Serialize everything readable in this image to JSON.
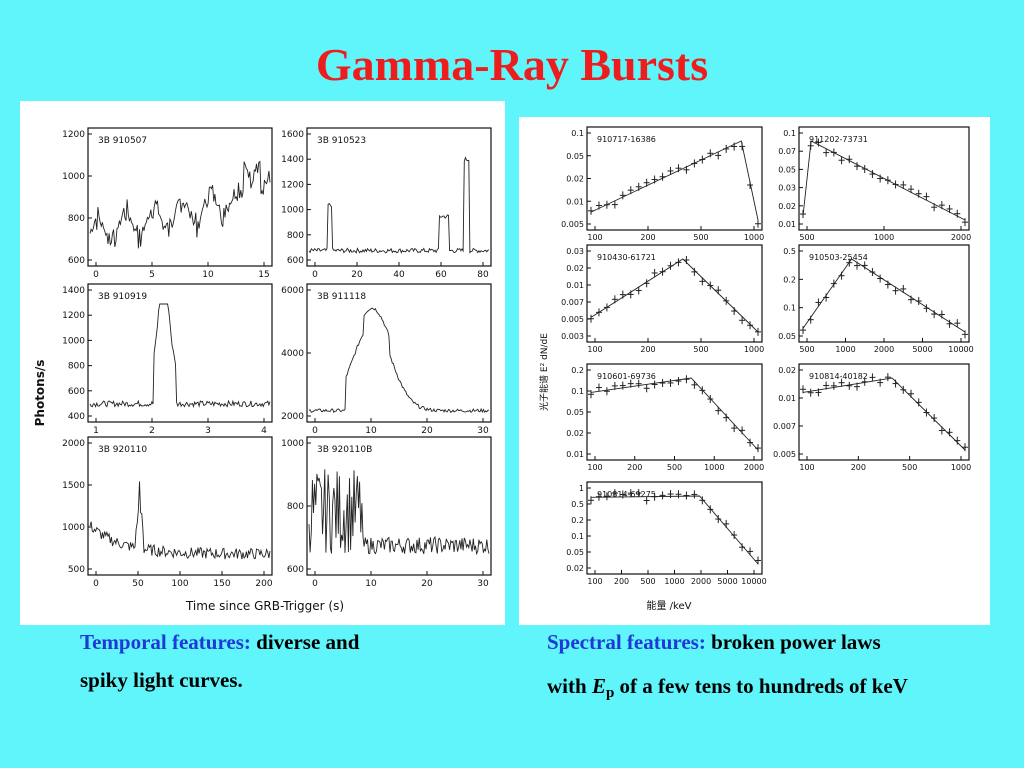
{
  "slide": {
    "title": "Gamma-Ray Bursts",
    "accent_color": "#1f39d6",
    "title_color": "#ee1d1d",
    "background": "#5ff5fb"
  },
  "left_figure": {
    "y_axis_label": "Photons/s",
    "x_axis_label": "Time since GRB-Trigger (s)",
    "panels": [
      {
        "name": "3B 910507",
        "yticks": [
          "1200",
          "1000",
          "800",
          "600"
        ],
        "xticks": [
          "0",
          "5",
          "10",
          "15"
        ]
      },
      {
        "name": "3B 910523",
        "yticks": [
          "1600",
          "1400",
          "1200",
          "1000",
          "800",
          "600"
        ],
        "xticks": [
          "0",
          "20",
          "40",
          "60",
          "80"
        ]
      },
      {
        "name": "3B 910919",
        "yticks": [
          "1400",
          "1200",
          "1000",
          "800",
          "600",
          "400"
        ],
        "xticks": [
          "1",
          "2",
          "3",
          "4"
        ]
      },
      {
        "name": "3B 911118",
        "yticks": [
          "6000",
          "4000",
          "2000"
        ],
        "xticks": [
          "0",
          "10",
          "20",
          "30"
        ]
      },
      {
        "name": "3B 920110",
        "yticks": [
          "2000",
          "1500",
          "1000",
          "500"
        ],
        "xticks": [
          "0",
          "50",
          "100",
          "150",
          "200"
        ]
      },
      {
        "name": "3B 920110B",
        "yticks": [
          "1000",
          "800",
          "600"
        ],
        "xticks": [
          "0",
          "10",
          "20",
          "30"
        ]
      }
    ]
  },
  "right_figure": {
    "y_axis_label": "光子能谱 E² dN/dE",
    "x_axis_label": "能量 /keV",
    "panels": [
      {
        "name": "910717-16386",
        "yticks": [
          "0.1",
          "0.05",
          "0.02",
          "0.01",
          "0.005"
        ],
        "xticks": [
          "100",
          "200",
          "500",
          "1000"
        ]
      },
      {
        "name": "911202-73731",
        "yticks": [
          "0.1",
          "0.07",
          "0.05",
          "0.03",
          "0.02",
          "0.01"
        ],
        "xticks": [
          "500",
          "1000",
          "2000"
        ]
      },
      {
        "name": "910430-61721",
        "yticks": [
          "0.03",
          "0.02",
          "0.01",
          "0.007",
          "0.005",
          "0.003"
        ],
        "xticks": [
          "100",
          "200",
          "500",
          "1000"
        ]
      },
      {
        "name": "910503-25454",
        "yticks": [
          "0.5",
          "0.2",
          "0.1",
          "0.05"
        ],
        "xticks": [
          "500",
          "1000",
          "2000",
          "5000",
          "10000"
        ]
      },
      {
        "name": "910601-69736",
        "yticks": [
          "0.2",
          "0.1",
          "0.05",
          "0.02",
          "0.01"
        ],
        "xticks": [
          "100",
          "200",
          "500",
          "1000",
          "2000"
        ]
      },
      {
        "name": "910814-40182",
        "yticks": [
          "0.02",
          "0.01",
          "0.007",
          "0.005"
        ],
        "xticks": [
          "100",
          "200",
          "500",
          "1000"
        ]
      },
      {
        "name": "910814-69275",
        "yticks": [
          "1",
          "0.5",
          "0.2",
          "0.1",
          "0.05",
          "0.02"
        ],
        "xticks": [
          "100",
          "200",
          "500",
          "1000",
          "2000",
          "5000",
          "10000"
        ]
      }
    ]
  },
  "captions": {
    "left_label": "Temporal features:",
    "left_text_1": " diverse and",
    "left_text_2": "spiky light curves.",
    "right_label": "Spectral features:",
    "right_text_1": " broken power laws",
    "right_text_2_a": "with ",
    "right_text_2_E": "E",
    "right_text_2_sub": "p",
    "right_text_2_b": " of a few tens to hundreds of keV"
  }
}
